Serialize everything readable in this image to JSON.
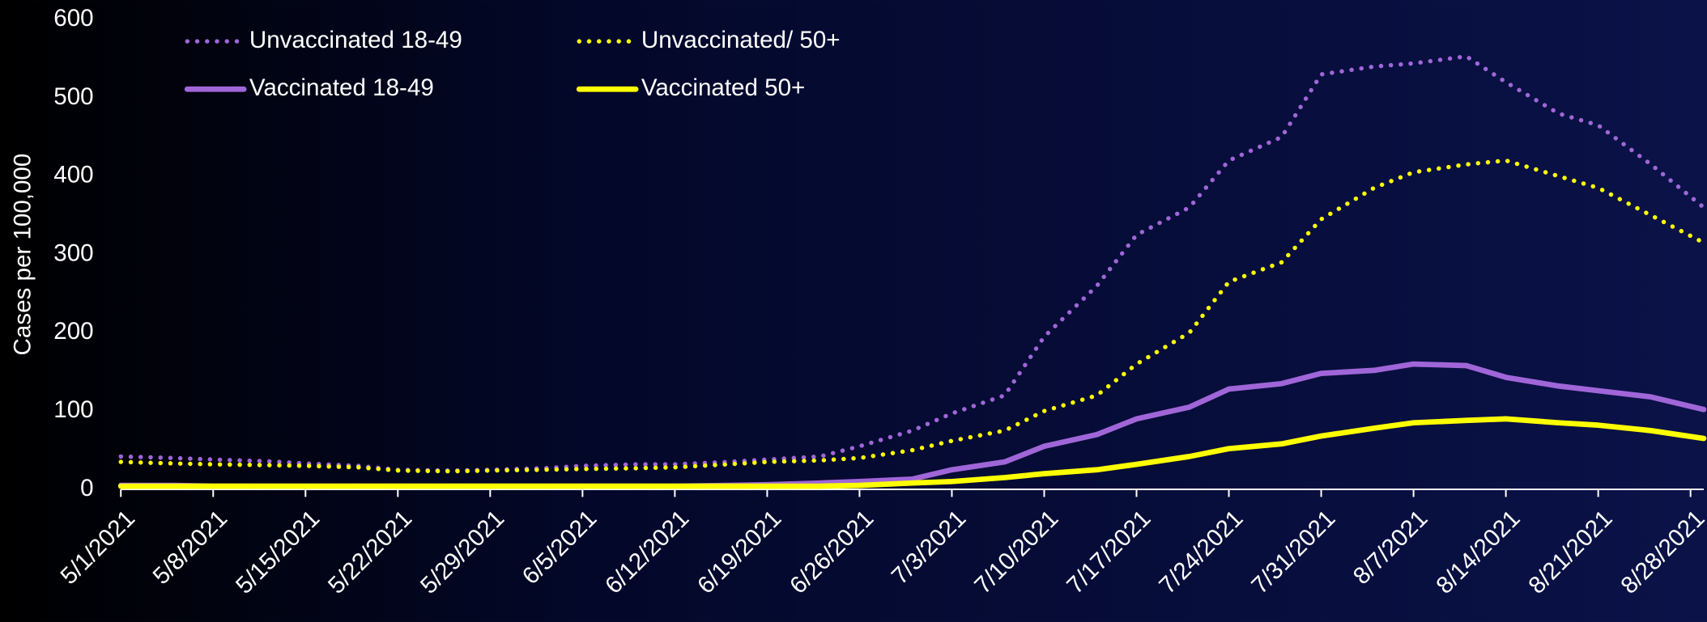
{
  "chart_data": {
    "type": "line",
    "y_label": "Cases per 100,000",
    "x": [
      "5/1/2021",
      "5/5/2021",
      "5/8/2021",
      "5/12/2021",
      "5/15/2021",
      "5/19/2021",
      "5/22/2021",
      "5/26/2021",
      "5/29/2021",
      "6/2/2021",
      "6/5/2021",
      "6/9/2021",
      "6/12/2021",
      "6/16/2021",
      "6/19/2021",
      "6/23/2021",
      "6/26/2021",
      "6/30/2021",
      "7/3/2021",
      "7/7/2021",
      "7/10/2021",
      "7/14/2021",
      "7/17/2021",
      "7/21/2021",
      "7/24/2021",
      "7/28/2021",
      "7/31/2021",
      "8/4/2021",
      "8/7/2021",
      "8/11/2021",
      "8/14/2021",
      "8/18/2021",
      "8/21/2021",
      "8/25/2021",
      "8/29/2021"
    ],
    "series": [
      {
        "name": "Unvaccinated 18-49",
        "color": "#a066d8",
        "style": "dotted",
        "values": [
          42,
          40,
          38,
          36,
          33,
          30,
          25,
          24,
          25,
          27,
          30,
          32,
          32,
          35,
          38,
          42,
          55,
          75,
          97,
          120,
          195,
          260,
          325,
          360,
          420,
          450,
          530,
          540,
          544,
          553,
          520,
          480,
          465,
          415,
          360
        ]
      },
      {
        "name": "Unvaccinated/ 50+",
        "color": "#ffff00",
        "style": "dotted",
        "values": [
          35,
          33,
          32,
          31,
          30,
          28,
          24,
          23,
          24,
          25,
          26,
          27,
          28,
          32,
          35,
          37,
          40,
          50,
          62,
          75,
          100,
          120,
          160,
          200,
          265,
          290,
          345,
          385,
          405,
          415,
          420,
          400,
          385,
          350,
          315
        ]
      },
      {
        "name": "Vaccinated 18-49",
        "color": "#a066d8",
        "style": "solid",
        "values": [
          5,
          5,
          4,
          4,
          4,
          4,
          4,
          4,
          4,
          4,
          4,
          4,
          4,
          5,
          6,
          8,
          10,
          13,
          25,
          35,
          55,
          70,
          90,
          105,
          128,
          135,
          148,
          152,
          160,
          158,
          143,
          132,
          126,
          118,
          102
        ]
      },
      {
        "name": "Vaccinated 50+",
        "color": "#ffff00",
        "style": "solid",
        "values": [
          4,
          4,
          4,
          4,
          4,
          4,
          4,
          4,
          4,
          4,
          4,
          4,
          4,
          4,
          4,
          4,
          5,
          8,
          10,
          15,
          20,
          25,
          32,
          42,
          52,
          58,
          68,
          78,
          85,
          88,
          90,
          85,
          82,
          75,
          65
        ]
      }
    ],
    "xlim": [
      "5/1/2021",
      "8/29/2021"
    ],
    "xticks": [
      "5/1/2021",
      "5/8/2021",
      "5/15/2021",
      "5/22/2021",
      "5/29/2021",
      "6/5/2021",
      "6/12/2021",
      "6/19/2021",
      "6/26/2021",
      "7/3/2021",
      "7/10/2021",
      "7/17/2021",
      "7/24/2021",
      "7/31/2021",
      "8/7/2021",
      "8/14/2021",
      "8/21/2021",
      "8/28/2021"
    ],
    "ylim": [
      0,
      600
    ],
    "yticks": [
      0,
      100,
      200,
      300,
      400,
      500,
      600
    ],
    "legend": "top-left"
  }
}
